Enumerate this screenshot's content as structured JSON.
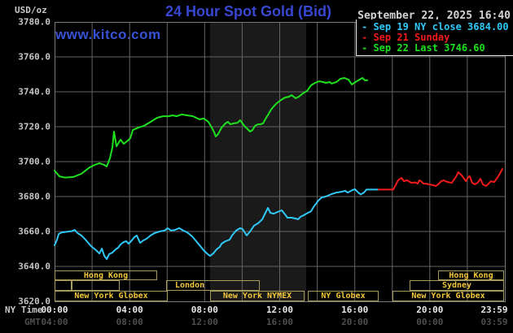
{
  "header": {
    "units_label": "USD/oz",
    "title": "24 Hour Spot Gold (Bid)",
    "datetime": "September 22, 2025 16:40",
    "watermark": "www.kitco.com"
  },
  "legend": {
    "items": [
      {
        "marker": "-",
        "text": "Sep 19 NY close 3684.00",
        "color": "#2fc8f7"
      },
      {
        "marker": "-",
        "text": "Sep 21 Sunday",
        "color": "#f21b1b"
      },
      {
        "marker": "-",
        "text": "Sep 22 Last 3746.60",
        "color": "#1ee11e"
      }
    ]
  },
  "axes": {
    "ny_label": "NY Time",
    "gmt_label": "GMT",
    "y_ticks": [
      {
        "label": "3780.0",
        "value": 3780
      },
      {
        "label": "3760.0",
        "value": 3760
      },
      {
        "label": "3740.0",
        "value": 3740
      },
      {
        "label": "3720.0",
        "value": 3720
      },
      {
        "label": "3700.0",
        "value": 3700
      },
      {
        "label": "3680.0",
        "value": 3680
      },
      {
        "label": "3660.0",
        "value": 3660
      },
      {
        "label": "3640.0",
        "value": 3640
      },
      {
        "label": "3620.0",
        "value": 3620
      }
    ],
    "x_ticks": [
      {
        "ny": "00:00",
        "gmt": "04:00",
        "hour": 0
      },
      {
        "ny": "04:00",
        "gmt": "08:00",
        "hour": 4
      },
      {
        "ny": "08:00",
        "gmt": "12:00",
        "hour": 8
      },
      {
        "ny": "12:00",
        "gmt": "16:00",
        "hour": 12
      },
      {
        "ny": "16:00",
        "gmt": "20:00",
        "hour": 16
      },
      {
        "ny": "20:00",
        "gmt": "00:00",
        "hour": 20
      },
      {
        "ny": "23:59",
        "gmt": "03:59",
        "hour": 23.98
      }
    ]
  },
  "sessions": {
    "rows": [
      {
        "boxes": [
          {
            "start": 0,
            "end": 5.47,
            "label": "Hong Kong"
          },
          {
            "start": 20.45,
            "end": 23.95,
            "label": "Hong Kong"
          }
        ]
      },
      {
        "boxes": [
          {
            "start": 0,
            "end": 0.91,
            "label": ""
          },
          {
            "start": 0.91,
            "end": 3.47,
            "label": ""
          },
          {
            "start": 5.95,
            "end": 10.94,
            "label": "London",
            "align": "left"
          },
          {
            "start": 18.92,
            "end": 23.95,
            "label": "Sydney"
          }
        ]
      },
      {
        "boxes": [
          {
            "start": 0,
            "end": 6.03,
            "label": "New York Globex"
          },
          {
            "start": 8.29,
            "end": 13.32,
            "label": "New York NYMEX"
          },
          {
            "start": 13.5,
            "end": 17.27,
            "label": "NY Globex"
          },
          {
            "start": 18.01,
            "end": 23.95,
            "label": "New York Globex"
          }
        ]
      }
    ]
  },
  "colors": {
    "background": "#000000",
    "grid": "#646464",
    "plot_border": "#7a7a7a",
    "band": "#1a1a1a",
    "session_border": "#a79b5a",
    "session_label": "#f2c73b"
  },
  "chart_data": {
    "type": "line",
    "title": "24 Hour Spot Gold (Bid)",
    "xlabel": "NY Time (hours 0-24)",
    "ylabel": "USD/oz",
    "ylim": [
      3620,
      3780
    ],
    "xlim_hours": [
      0,
      24
    ],
    "y_grid_step": 20,
    "x_grid_step_hours": 2,
    "grid": true,
    "legend_position": "top-right",
    "nymex_band_hours": [
      8.29,
      13.41
    ],
    "series": [
      {
        "name": "Sep 19 NY close 3684.00",
        "color": "#2fc8f7",
        "points": [
          [
            0,
            3652.1
          ],
          [
            0.13,
            3655.3
          ],
          [
            0.22,
            3658.6
          ],
          [
            0.39,
            3659.5
          ],
          [
            0.65,
            3659.8
          ],
          [
            0.91,
            3660.2
          ],
          [
            1.08,
            3660.9
          ],
          [
            1.22,
            3659.1
          ],
          [
            1.43,
            3657.7
          ],
          [
            1.65,
            3655.3
          ],
          [
            1.95,
            3651.6
          ],
          [
            2.21,
            3649.3
          ],
          [
            2.39,
            3647.4
          ],
          [
            2.52,
            3650.2
          ],
          [
            2.65,
            3646
          ],
          [
            2.78,
            3644.2
          ],
          [
            2.91,
            3647
          ],
          [
            3.08,
            3647.9
          ],
          [
            3.26,
            3649.8
          ],
          [
            3.39,
            3650.7
          ],
          [
            3.52,
            3652.6
          ],
          [
            3.69,
            3654
          ],
          [
            3.82,
            3654.4
          ],
          [
            3.95,
            3653
          ],
          [
            4.08,
            3654.4
          ],
          [
            4.25,
            3656.7
          ],
          [
            4.38,
            3657.7
          ],
          [
            4.56,
            3653.5
          ],
          [
            4.73,
            3654.9
          ],
          [
            4.9,
            3655.8
          ],
          [
            5.12,
            3657.7
          ],
          [
            5.34,
            3659.1
          ],
          [
            5.6,
            3660
          ],
          [
            5.86,
            3660.5
          ],
          [
            6.03,
            3661.9
          ],
          [
            6.21,
            3660.5
          ],
          [
            6.42,
            3660.9
          ],
          [
            6.64,
            3661.9
          ],
          [
            6.86,
            3660.5
          ],
          [
            7.07,
            3659.5
          ],
          [
            7.33,
            3657.2
          ],
          [
            7.55,
            3654.4
          ],
          [
            7.77,
            3651.6
          ],
          [
            7.94,
            3649.3
          ],
          [
            8.12,
            3647.4
          ],
          [
            8.29,
            3646
          ],
          [
            8.46,
            3647.4
          ],
          [
            8.64,
            3649.8
          ],
          [
            8.81,
            3651.2
          ],
          [
            8.9,
            3653
          ],
          [
            9.11,
            3654.4
          ],
          [
            9.33,
            3655.3
          ],
          [
            9.46,
            3657.7
          ],
          [
            9.68,
            3660.5
          ],
          [
            9.89,
            3661.9
          ],
          [
            10.02,
            3661.4
          ],
          [
            10.24,
            3657.7
          ],
          [
            10.42,
            3660
          ],
          [
            10.63,
            3663.3
          ],
          [
            10.85,
            3664.7
          ],
          [
            11.07,
            3667
          ],
          [
            11.24,
            3670.7
          ],
          [
            11.37,
            3673.5
          ],
          [
            11.5,
            3670.7
          ],
          [
            11.68,
            3670.2
          ],
          [
            11.89,
            3671.2
          ],
          [
            12.11,
            3672.1
          ],
          [
            12.28,
            3669.8
          ],
          [
            12.41,
            3667.9
          ],
          [
            12.63,
            3667.9
          ],
          [
            12.85,
            3667.4
          ],
          [
            12.98,
            3667
          ],
          [
            13.11,
            3668.4
          ],
          [
            13.28,
            3669.3
          ],
          [
            13.5,
            3670.7
          ],
          [
            13.67,
            3671.6
          ],
          [
            13.8,
            3674
          ],
          [
            13.93,
            3675.8
          ],
          [
            14.06,
            3677.7
          ],
          [
            14.24,
            3679.5
          ],
          [
            14.45,
            3680
          ],
          [
            14.76,
            3681.4
          ],
          [
            15.02,
            3682.3
          ],
          [
            15.32,
            3682.8
          ],
          [
            15.49,
            3683.3
          ],
          [
            15.62,
            3682.3
          ],
          [
            15.88,
            3683.7
          ],
          [
            16.01,
            3684.2
          ],
          [
            16.19,
            3682.3
          ],
          [
            16.32,
            3681.2
          ],
          [
            16.49,
            3682.3
          ],
          [
            16.62,
            3684
          ],
          [
            17.27,
            3684
          ]
        ]
      },
      {
        "name": "Sep 21 Sunday",
        "color": "#f21b1b",
        "points": [
          [
            17.27,
            3684
          ],
          [
            18.05,
            3684
          ],
          [
            18.18,
            3686.5
          ],
          [
            18.31,
            3689.3
          ],
          [
            18.49,
            3690.7
          ],
          [
            18.62,
            3688.8
          ],
          [
            18.79,
            3689.3
          ],
          [
            19.01,
            3687.9
          ],
          [
            19.23,
            3688.1
          ],
          [
            19.36,
            3687.4
          ],
          [
            19.44,
            3689.3
          ],
          [
            19.53,
            3688.8
          ],
          [
            19.66,
            3687.4
          ],
          [
            19.79,
            3687.4
          ],
          [
            19.96,
            3687
          ],
          [
            20.18,
            3686.5
          ],
          [
            20.31,
            3686
          ],
          [
            20.44,
            3687
          ],
          [
            20.61,
            3688.8
          ],
          [
            20.74,
            3689.3
          ],
          [
            20.87,
            3688.6
          ],
          [
            21.05,
            3688.1
          ],
          [
            21.18,
            3687.9
          ],
          [
            21.26,
            3689.3
          ],
          [
            21.39,
            3691.2
          ],
          [
            21.52,
            3694
          ],
          [
            21.7,
            3692.1
          ],
          [
            21.83,
            3690.2
          ],
          [
            21.92,
            3688.8
          ],
          [
            22.05,
            3691.2
          ],
          [
            22.13,
            3691.6
          ],
          [
            22.26,
            3687.9
          ],
          [
            22.39,
            3687
          ],
          [
            22.52,
            3687.7
          ],
          [
            22.61,
            3688.8
          ],
          [
            22.7,
            3690.2
          ],
          [
            22.83,
            3687
          ],
          [
            23,
            3686
          ],
          [
            23.13,
            3687.4
          ],
          [
            23.26,
            3688.8
          ],
          [
            23.43,
            3688.3
          ],
          [
            23.56,
            3690.2
          ],
          [
            23.65,
            3691.6
          ],
          [
            23.78,
            3694
          ],
          [
            23.87,
            3695.8
          ]
        ]
      },
      {
        "name": "Sep 22 Last 3746.60",
        "color": "#1ee11e",
        "points": [
          [
            0,
            3694.9
          ],
          [
            0.26,
            3691.6
          ],
          [
            0.56,
            3690.9
          ],
          [
            1,
            3691.2
          ],
          [
            1.43,
            3693
          ],
          [
            1.87,
            3696.7
          ],
          [
            2.13,
            3698.1
          ],
          [
            2.39,
            3699.1
          ],
          [
            2.65,
            3698.1
          ],
          [
            2.78,
            3697.2
          ],
          [
            2.95,
            3701.9
          ],
          [
            3.08,
            3708
          ],
          [
            3.17,
            3717.2
          ],
          [
            3.3,
            3708.8
          ],
          [
            3.52,
            3712.6
          ],
          [
            3.69,
            3710.2
          ],
          [
            3.91,
            3712.1
          ],
          [
            4.04,
            3713.5
          ],
          [
            4.17,
            3718.1
          ],
          [
            4.47,
            3719.5
          ],
          [
            4.77,
            3720.5
          ],
          [
            5.12,
            3722.8
          ],
          [
            5.47,
            3725.1
          ],
          [
            5.77,
            3726
          ],
          [
            6.08,
            3726
          ],
          [
            6.29,
            3726.5
          ],
          [
            6.51,
            3726
          ],
          [
            6.77,
            3727
          ],
          [
            7.07,
            3726.5
          ],
          [
            7.38,
            3726
          ],
          [
            7.73,
            3724.2
          ],
          [
            7.94,
            3724.7
          ],
          [
            8.2,
            3722.8
          ],
          [
            8.38,
            3719.5
          ],
          [
            8.51,
            3716.7
          ],
          [
            8.59,
            3714.4
          ],
          [
            8.72,
            3715.8
          ],
          [
            8.9,
            3719.5
          ],
          [
            9.11,
            3721.9
          ],
          [
            9.24,
            3722.8
          ],
          [
            9.37,
            3721.4
          ],
          [
            9.55,
            3721.9
          ],
          [
            9.76,
            3722.3
          ],
          [
            9.89,
            3723.7
          ],
          [
            10.11,
            3720.5
          ],
          [
            10.24,
            3719.1
          ],
          [
            10.42,
            3717.2
          ],
          [
            10.55,
            3718.1
          ],
          [
            10.68,
            3720.5
          ],
          [
            10.85,
            3721.4
          ],
          [
            10.98,
            3721.4
          ],
          [
            11.11,
            3721.9
          ],
          [
            11.28,
            3725.1
          ],
          [
            11.41,
            3727.4
          ],
          [
            11.54,
            3729.8
          ],
          [
            11.72,
            3732.1
          ],
          [
            11.85,
            3733.5
          ],
          [
            12.07,
            3735.3
          ],
          [
            12.28,
            3736.7
          ],
          [
            12.5,
            3737.2
          ],
          [
            12.63,
            3738.1
          ],
          [
            12.85,
            3736.3
          ],
          [
            13.02,
            3737.2
          ],
          [
            13.24,
            3739.1
          ],
          [
            13.46,
            3740.5
          ],
          [
            13.67,
            3743.7
          ],
          [
            13.89,
            3745.1
          ],
          [
            14.11,
            3746
          ],
          [
            14.32,
            3745.6
          ],
          [
            14.45,
            3745.1
          ],
          [
            14.67,
            3745.6
          ],
          [
            14.76,
            3744.7
          ],
          [
            15.02,
            3745.6
          ],
          [
            15.23,
            3747.4
          ],
          [
            15.45,
            3747.9
          ],
          [
            15.67,
            3746.9
          ],
          [
            15.84,
            3744.2
          ],
          [
            16.1,
            3746
          ],
          [
            16.32,
            3747.4
          ],
          [
            16.41,
            3747.9
          ],
          [
            16.55,
            3746.5
          ],
          [
            16.67,
            3746.6
          ]
        ]
      }
    ]
  }
}
